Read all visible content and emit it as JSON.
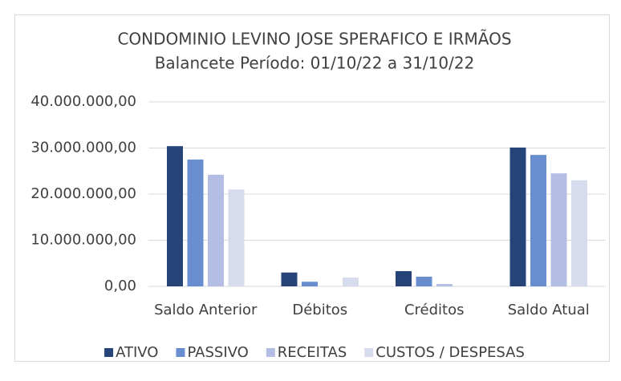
{
  "chart_data": {
    "type": "bar",
    "title": "CONDOMINIO LEVINO JOSE SPERAFICO E IRMÃOS",
    "subtitle": "Balancete  Período: 01/10/22 a 31/10/22",
    "categories": [
      "Saldo Anterior",
      "Débitos",
      "Créditos",
      "Saldo Atual"
    ],
    "series": [
      {
        "name": "ATIVO",
        "color": "#264478",
        "values": [
          30400000,
          3000000,
          3300000,
          30100000
        ]
      },
      {
        "name": "PASSIVO",
        "color": "#698ed0",
        "values": [
          27500000,
          1000000,
          2100000,
          28500000
        ]
      },
      {
        "name": "RECEITAS",
        "color": "#b4bde3",
        "values": [
          24200000,
          0,
          500000,
          24500000
        ]
      },
      {
        "name": "CUSTOS / DESPESAS",
        "color": "#d6dbee",
        "values": [
          21000000,
          1900000,
          0,
          23000000
        ]
      }
    ],
    "ylim": [
      0,
      40000000
    ],
    "yticks": [
      {
        "value": 0,
        "label": "0,00"
      },
      {
        "value": 10000000,
        "label": "10.000.000,00"
      },
      {
        "value": 20000000,
        "label": "20.000.000,00"
      },
      {
        "value": 30000000,
        "label": "30.000.000,00"
      },
      {
        "value": 40000000,
        "label": "40.000.000,00"
      }
    ],
    "grid": true,
    "legend": "bottom"
  }
}
